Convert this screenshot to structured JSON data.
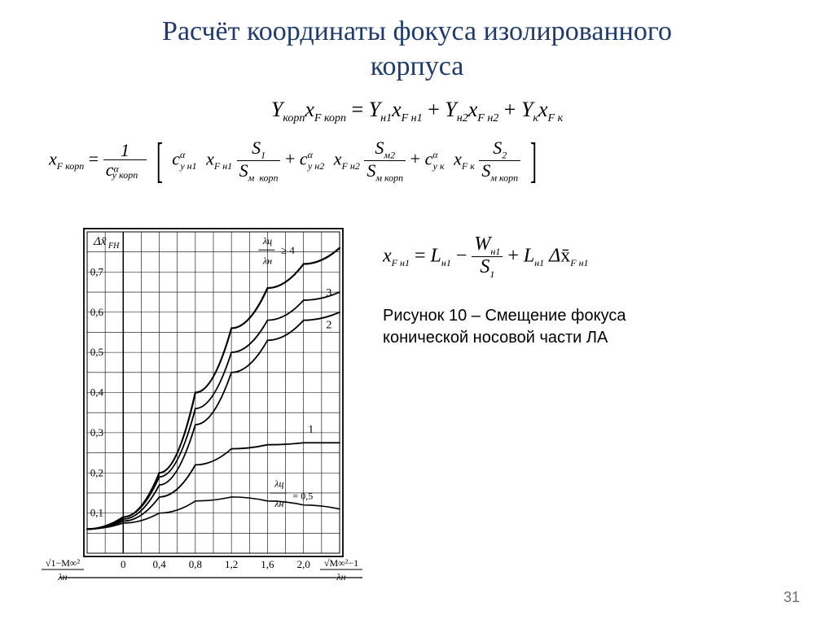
{
  "title_line1": "Расчёт координаты фокуса изолированного",
  "title_line2": "корпуса",
  "caption_l1": "Рисунок 10 – Смещение фокуса",
  "caption_l2": "конической носовой части ЛА",
  "page_number": "31",
  "eq1": {
    "lhs": "Y_{корп} x_{F корп}",
    "rhs": "Y_{н1} x_{F н1} + Y_{н2} x_{F н2} + Y_{к} x_{F к}"
  },
  "eq3": {
    "lhs": "x_{F н1}",
    "rhs": "L_{н1} − W_{н1}/S_1 + L_{н1} Δx̄_{F н1}"
  },
  "chart": {
    "type": "line",
    "ylabel": "Δx̄_{FH}",
    "ylim": [
      0,
      0.8
    ],
    "yticks": [
      0.1,
      0.2,
      0.3,
      0.4,
      0.5,
      0.6,
      0.7
    ],
    "yticklabels": [
      "0,1",
      "0,2",
      "0,3",
      "0,4",
      "0,5",
      "0,6",
      "0,7"
    ],
    "xlim": [
      -0.4,
      2.4
    ],
    "xticks": [
      0,
      0.4,
      0.8,
      1.2,
      1.6,
      2.0
    ],
    "xticklabels": [
      "0",
      "0,4",
      "0,8",
      "1,2",
      "1,6",
      "2,0"
    ],
    "x_left_label": "√(1−M∞²)/λн",
    "x_right_label": "√(M∞²−1)/λн",
    "series": [
      {
        "label": "λц/λн = 0,5",
        "x": [
          -0.4,
          0,
          0.4,
          0.8,
          1.2,
          1.6,
          2.0,
          2.4
        ],
        "y": [
          0.06,
          0.075,
          0.1,
          0.13,
          0.14,
          0.13,
          0.12,
          0.11
        ],
        "width": 1.6
      },
      {
        "label": "1",
        "x": [
          -0.4,
          0,
          0.4,
          0.8,
          1.2,
          1.6,
          2.0,
          2.4
        ],
        "y": [
          0.06,
          0.08,
          0.14,
          0.22,
          0.26,
          0.27,
          0.275,
          0.275
        ],
        "width": 1.8
      },
      {
        "label": "2",
        "x": [
          -0.4,
          0,
          0.4,
          0.8,
          1.2,
          1.6,
          2.0,
          2.4
        ],
        "y": [
          0.06,
          0.085,
          0.17,
          0.32,
          0.45,
          0.53,
          0.58,
          0.6
        ],
        "width": 1.8
      },
      {
        "label": "3",
        "x": [
          -0.4,
          0,
          0.4,
          0.8,
          1.2,
          1.6,
          2.0,
          2.4
        ],
        "y": [
          0.06,
          0.09,
          0.19,
          0.36,
          0.5,
          0.58,
          0.63,
          0.65
        ],
        "width": 1.8
      },
      {
        "label": "λц/λн ≥ 4",
        "x": [
          -0.4,
          0,
          0.4,
          0.8,
          1.2,
          1.6,
          2.0,
          2.4
        ],
        "y": [
          0.06,
          0.09,
          0.2,
          0.4,
          0.56,
          0.66,
          0.72,
          0.76
        ],
        "width": 2.2
      }
    ],
    "grid_color": "#000000",
    "line_color": "#000000",
    "bg_color": "#ffffff",
    "tick_fontsize": 13
  }
}
